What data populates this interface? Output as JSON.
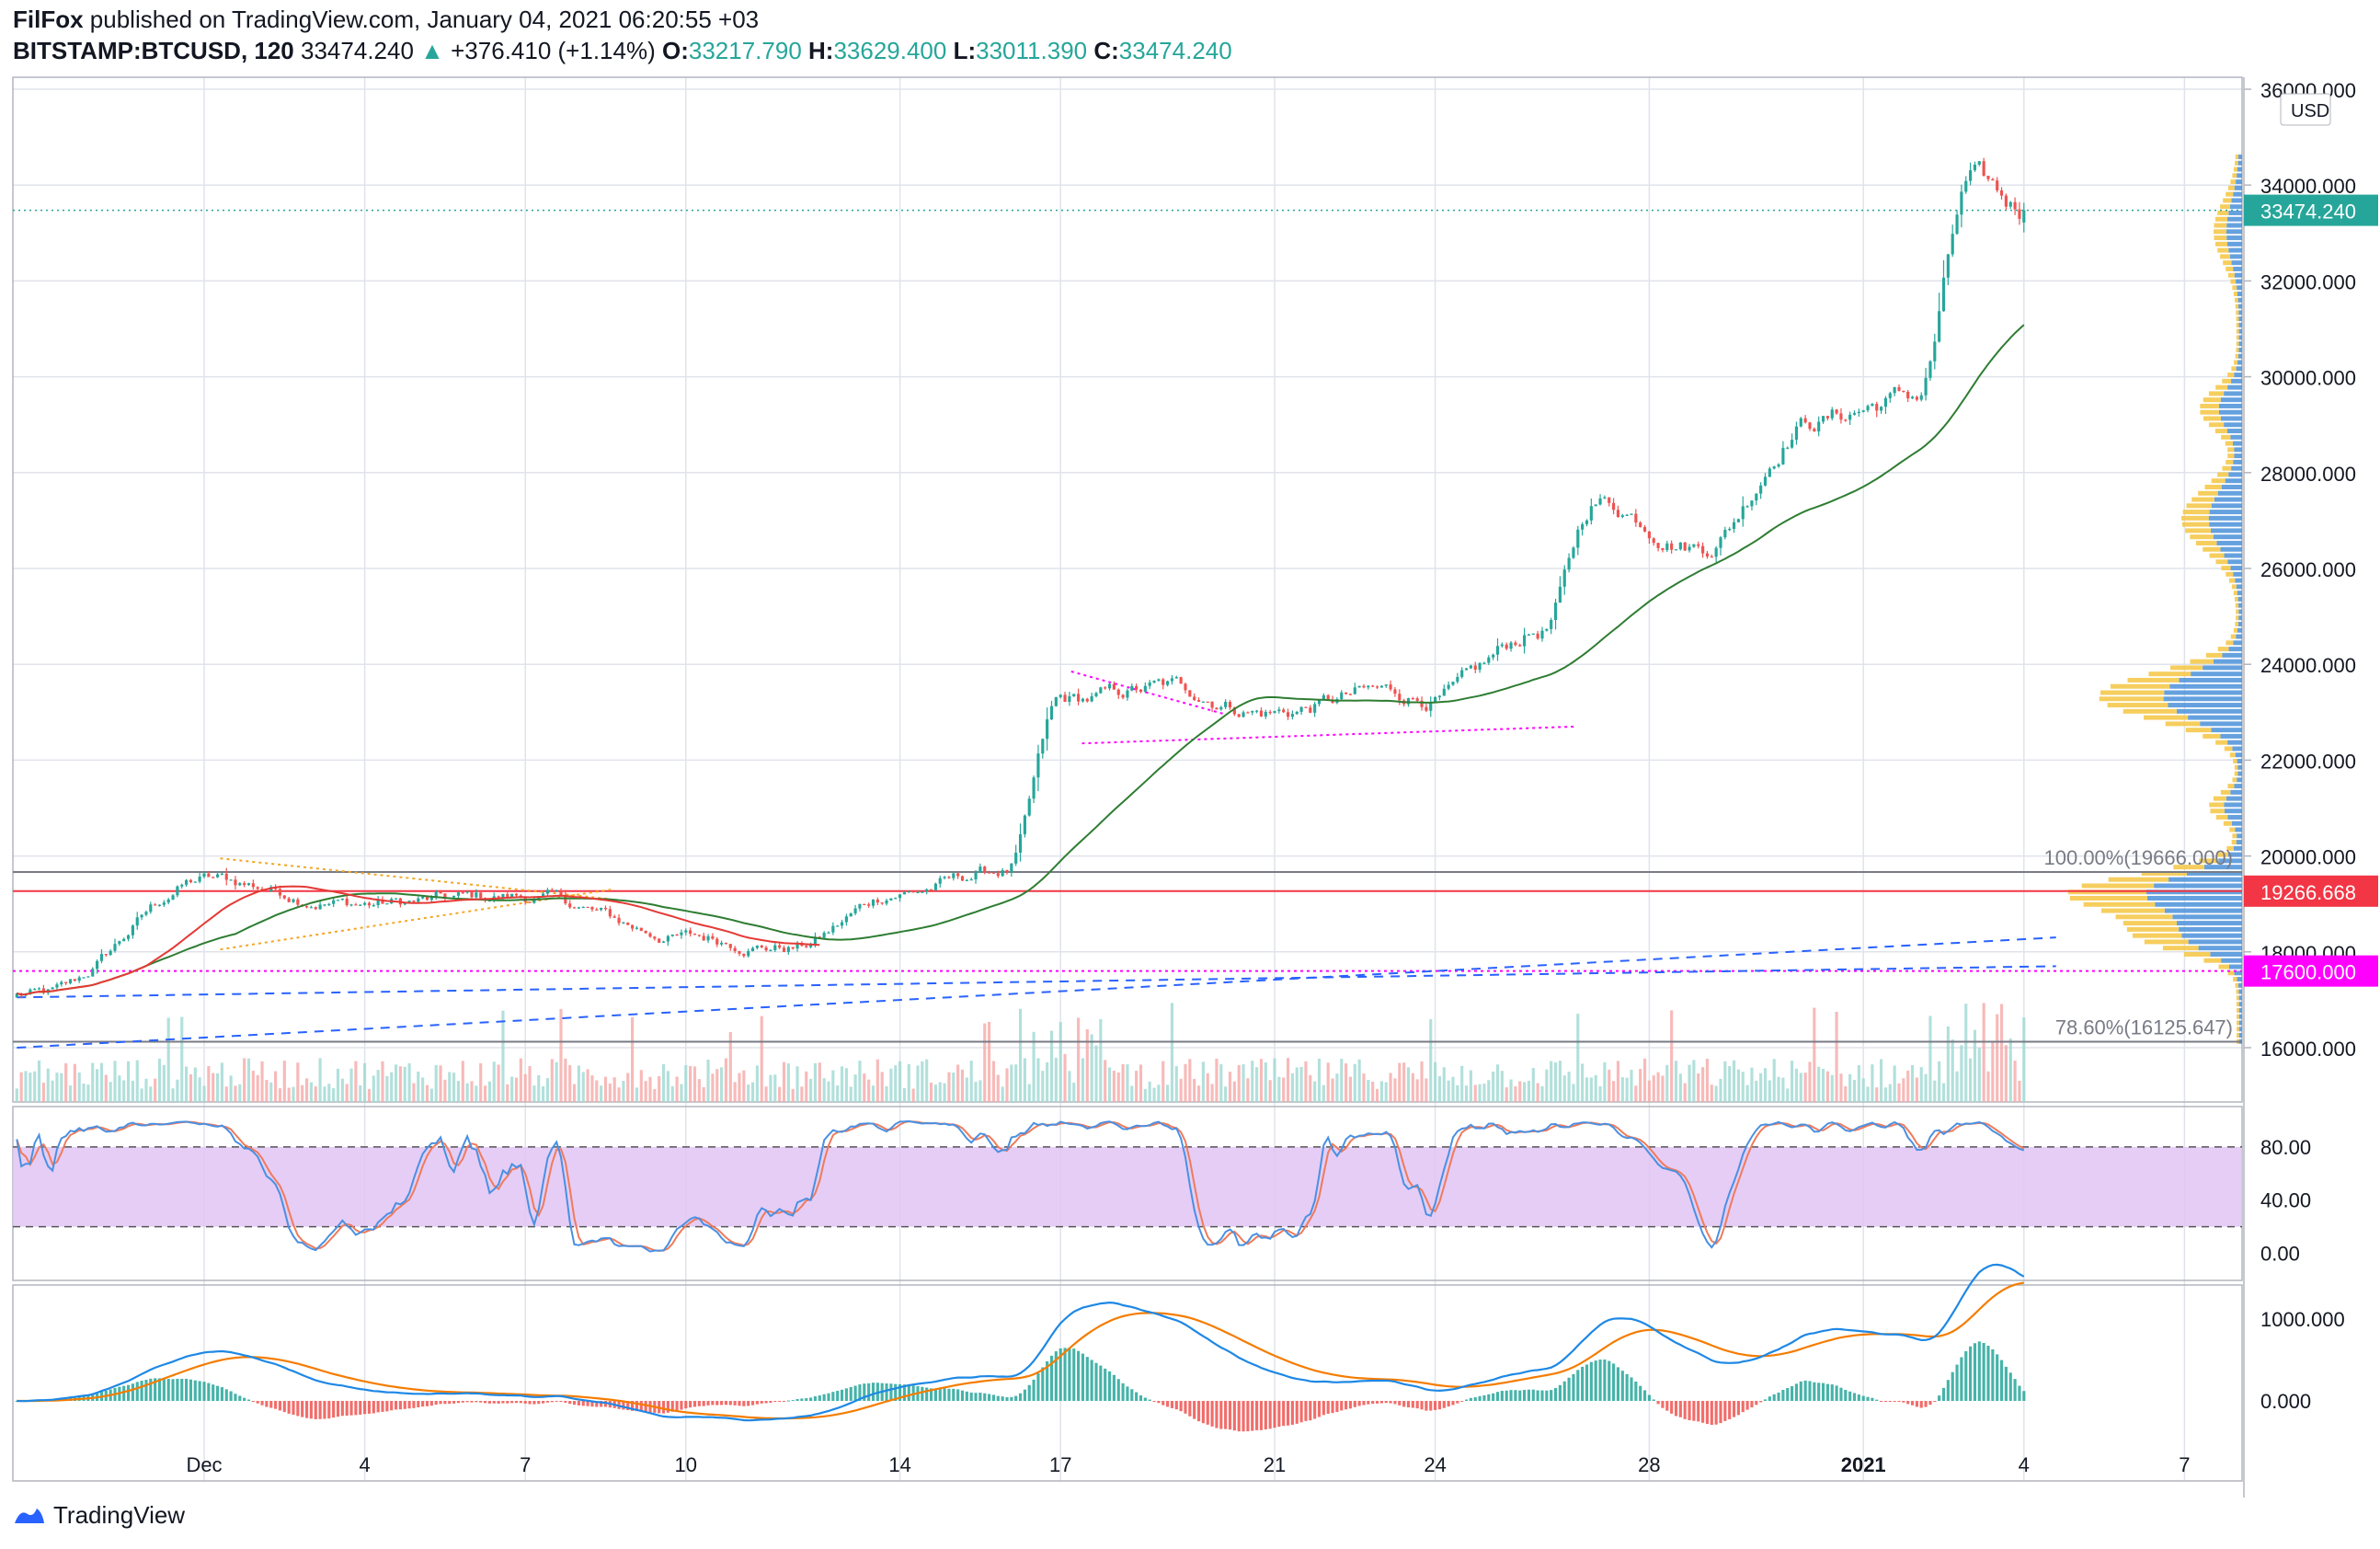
{
  "header": {
    "publisher": "FilFox",
    "published_text": "published on TradingView.com, January 04, 2021 06:20:55 +03",
    "symbol": "BITSTAMP:BTCUSD, 120",
    "last": "33474.240",
    "arrow": "▲",
    "change": "+376.410 (+1.14%)",
    "o_label": "O:",
    "o_value": "33217.790",
    "h_label": "H:",
    "h_value": "33629.400",
    "l_label": "L:",
    "l_value": "33011.390",
    "c_label": "C:",
    "c_value": "33474.240"
  },
  "price_axis": {
    "currency": "USD",
    "ticks": [
      "36000.000",
      "34000.000",
      "32000.000",
      "30000.000",
      "28000.000",
      "26000.000",
      "24000.000",
      "22000.000",
      "20000.000",
      "18000.000",
      "16000.000"
    ],
    "current_label": "33474.240",
    "red_level_label": "19266.668",
    "magenta_level_label": "17600.000",
    "fib_100_label": "100.00%(19666.000)",
    "fib_786_label": "78.60%(16125.647)"
  },
  "stoch_axis": {
    "ticks": [
      "80.00",
      "40.00",
      "0.00"
    ]
  },
  "macd_axis": {
    "ticks": [
      "1000.000",
      "0.000"
    ]
  },
  "time_axis": {
    "labels": [
      "Dec",
      "4",
      "7",
      "10",
      "14",
      "17",
      "21",
      "24",
      "28",
      "2021",
      "4",
      "7"
    ]
  },
  "colors": {
    "up": "#26a69a",
    "down": "#ef5350",
    "ma": "#2e7d32",
    "ma_red": "#e53935",
    "stoch_k": "#4a90e2",
    "stoch_d": "#ef7b5c",
    "stoch_band": "#e1c4f5",
    "macd": "#1e88e5",
    "signal": "#f57c00",
    "fib_line": "#787b86",
    "red_level": "#f23645",
    "magenta_level": "#ff00ff",
    "trend_blue": "#2962ff",
    "vp_blue": "#4a90d9",
    "vp_yellow": "#f5c542"
  },
  "chart_data": [
    {
      "type": "candlestick",
      "symbol": "BITSTAMP:BTCUSD",
      "interval": "120",
      "ylim": [
        15000,
        36000
      ],
      "x_labels": [
        "Dec",
        "4",
        "7",
        "10",
        "14",
        "17",
        "21",
        "24",
        "28",
        "2021",
        "4",
        "7"
      ],
      "anchors": [
        {
          "day": "Nov 28",
          "price": 17100
        },
        {
          "day": "Dec 1",
          "price": 19500
        },
        {
          "day": "Dec 4",
          "price": 19000
        },
        {
          "day": "Dec 7",
          "price": 19150
        },
        {
          "day": "Dec 10",
          "price": 18300
        },
        {
          "day": "Dec 12",
          "price": 18100
        },
        {
          "day": "Dec 14",
          "price": 19250
        },
        {
          "day": "Dec 16",
          "price": 19700
        },
        {
          "day": "Dec 17",
          "price": 23200
        },
        {
          "day": "Dec 19",
          "price": 23500
        },
        {
          "day": "Dec 21",
          "price": 23000
        },
        {
          "day": "Dec 23",
          "price": 23400
        },
        {
          "day": "Dec 24",
          "price": 23300
        },
        {
          "day": "Dec 26",
          "price": 24700
        },
        {
          "day": "Dec 27",
          "price": 27400
        },
        {
          "day": "Dec 29",
          "price": 26500
        },
        {
          "day": "Dec 31",
          "price": 29100
        },
        {
          "day": "Jan 2",
          "price": 29600
        },
        {
          "day": "Jan 3",
          "price": 34000
        },
        {
          "day": "Jan 4",
          "price": 33474
        }
      ],
      "last": {
        "open": 33217.79,
        "high": 33629.4,
        "low": 33011.39,
        "close": 33474.24
      },
      "levels": {
        "red": 19266.668,
        "magenta": 17600.0,
        "fib_100": 19666.0,
        "fib_786": 16125.647
      }
    },
    {
      "type": "line",
      "name_unlabeled": "stochastic",
      "ylim": [
        -10,
        100
      ],
      "bands": [
        20,
        80
      ],
      "ticks": [
        80,
        40,
        0
      ]
    },
    {
      "type": "line",
      "name_unlabeled": "macd",
      "ticks": [
        1000,
        0
      ],
      "peaks": [
        {
          "day": "Dec 1",
          "value": 400
        },
        {
          "day": "Dec 17",
          "value": 820
        },
        {
          "day": "Dec 27",
          "value": 780
        },
        {
          "day": "Jan 3",
          "value": 1180
        }
      ]
    }
  ]
}
